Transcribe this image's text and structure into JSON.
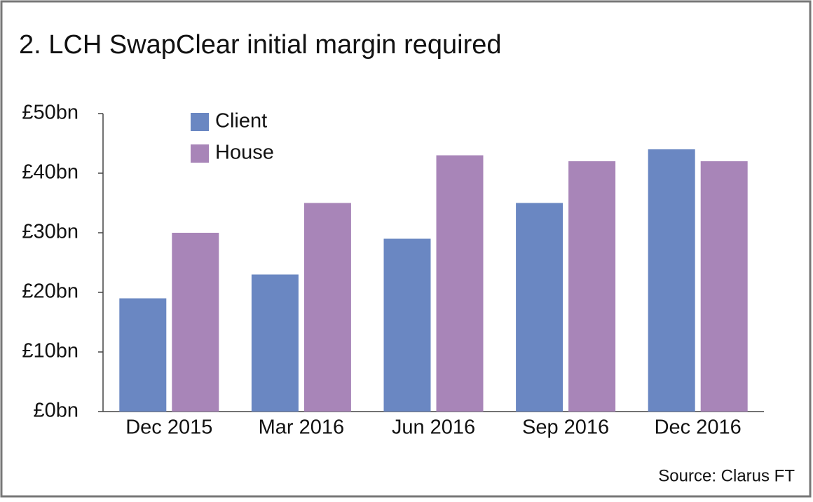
{
  "chart_data": {
    "type": "bar",
    "title": "2. LCH SwapClear initial margin required",
    "source": "Source: Clarus FT",
    "categories": [
      "Dec 2015",
      "Mar 2016",
      "Jun 2016",
      "Sep 2016",
      "Dec 2016"
    ],
    "series": [
      {
        "name": "Client",
        "color": "#6a87c2",
        "values": [
          19,
          23,
          29,
          35,
          44
        ]
      },
      {
        "name": "House",
        "color": "#a885b8",
        "values": [
          30,
          35,
          43,
          42,
          42
        ]
      }
    ],
    "ylim": [
      0,
      50
    ],
    "yticks": [
      {
        "value": 0,
        "label": "£0bn"
      },
      {
        "value": 10,
        "label": "£10bn"
      },
      {
        "value": 20,
        "label": "£20bn"
      },
      {
        "value": 30,
        "label": "£30bn"
      },
      {
        "value": 40,
        "label": "£40bn"
      },
      {
        "value": 50,
        "label": "£50bn"
      }
    ],
    "grid": false
  }
}
